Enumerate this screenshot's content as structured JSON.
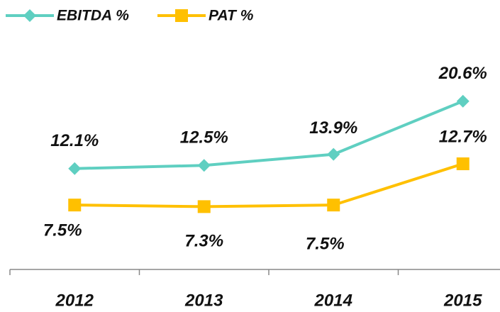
{
  "chart_data": {
    "type": "line",
    "categories": [
      "2012",
      "2013",
      "2014",
      "2015"
    ],
    "series": [
      {
        "name": "EBITDA %",
        "color": "#5fcfc1",
        "marker": "diamond",
        "values": [
          12.1,
          12.5,
          13.9,
          20.6
        ],
        "value_labels": [
          "12.1%",
          "12.5%",
          "13.9%",
          "20.6%"
        ]
      },
      {
        "name": "PAT %",
        "color": "#ffc000",
        "marker": "square",
        "values": [
          7.5,
          7.3,
          7.5,
          12.7
        ],
        "value_labels": [
          "7.5%",
          "7.3%",
          "7.5%",
          "12.7%"
        ]
      }
    ],
    "ylim": [
      0,
      25
    ],
    "legend": "top-left"
  }
}
